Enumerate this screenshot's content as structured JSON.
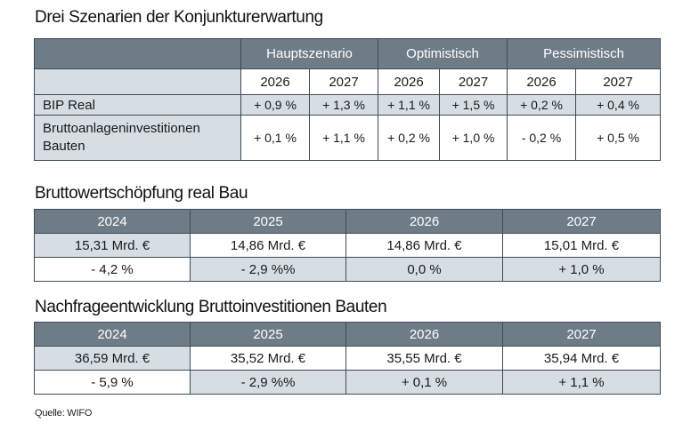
{
  "scenarios": {
    "title": "Drei Szenarien der Konjunkturerwartung",
    "headers": [
      "Hauptszenario",
      "Optimistisch",
      "Pessimistisch"
    ],
    "years": [
      "2026",
      "2027",
      "2026",
      "2027",
      "2026",
      "2027"
    ],
    "rows": [
      {
        "label": "BIP Real",
        "values": [
          "+ 0,9 %",
          "+ 1,3 %",
          "+ 1,1 %",
          "+ 1,5 %",
          "+ 0,2 %",
          "+ 0,4 %"
        ]
      },
      {
        "label": "Bruttoanlageninvestitionen Bauten",
        "values": [
          "+ 0,1 %",
          "+ 1,1 %",
          "+ 0,2 %",
          "+ 1,0 %",
          "- 0,2 %",
          "+ 0,5 %"
        ]
      }
    ]
  },
  "bws": {
    "title": "Bruttowertschöpfung real Bau",
    "years": [
      "2024",
      "2025",
      "2026",
      "2027"
    ],
    "values": [
      "15,31 Mrd. €",
      "14,86 Mrd. €",
      "14,86 Mrd. €",
      "15,01 Mrd. €"
    ],
    "changes": [
      "- 4,2 %",
      "- 2,9 %%",
      "0,0 %",
      "+ 1,0 %"
    ]
  },
  "nachfrage": {
    "title": "Nachfrageentwicklung Bruttoinvestitionen Bauten",
    "years": [
      "2024",
      "2025",
      "2026",
      "2027"
    ],
    "values": [
      "36,59 Mrd. €",
      "35,52 Mrd. €",
      "35,55 Mrd. €",
      "35,94 Mrd. €"
    ],
    "changes": [
      "- 5,9 %",
      "- 2,9 %%",
      "+ 0,1 %",
      "+ 1,1 %"
    ]
  },
  "source": "Quelle: WIFO",
  "colors": {
    "header_bg": "#6e7c88",
    "shade_bg": "#d6dde3",
    "border": "#3f4a55"
  }
}
